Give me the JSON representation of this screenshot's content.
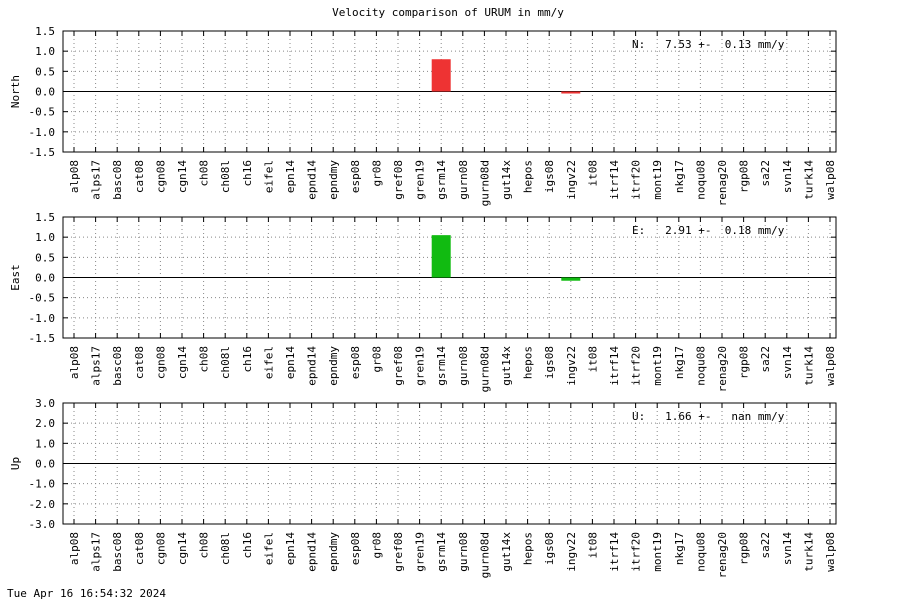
{
  "title": "Velocity comparison of URUM in mm/y",
  "timestamp": "Tue Apr 16 16:54:32 2024",
  "colors": {
    "north": "#ee3333",
    "east": "#11bb11",
    "grid": "#888888"
  },
  "chart_data": [
    {
      "type": "bar",
      "ylabel": "North",
      "annotation": "N:   7.53 +-  0.13 mm/y",
      "ylim": [
        -1.5,
        1.5
      ],
      "yticks": [
        "1.5",
        "1.0",
        "0.5",
        "0.0",
        "-0.5",
        "-1.0",
        "-1.5"
      ],
      "grid": true,
      "color": "#ee3333",
      "categories": [
        "alp08",
        "alps17",
        "basc08",
        "cat08",
        "cgn08",
        "cgn14",
        "ch08",
        "ch08l",
        "ch16",
        "eifel",
        "epn14",
        "epnd14",
        "epndmy",
        "esp08",
        "gr08",
        "gref08",
        "gren19",
        "gsrm14",
        "gurn08",
        "gurn08d",
        "gut14x",
        "hepos",
        "igs08",
        "ingv22",
        "it08",
        "itrf14",
        "itrf20",
        "mont19",
        "nkg17",
        "noqu08",
        "renag20",
        "rgp08",
        "sa22",
        "svn14",
        "turk14",
        "walp08"
      ],
      "values": [
        null,
        null,
        null,
        null,
        null,
        null,
        null,
        null,
        null,
        null,
        null,
        null,
        null,
        null,
        null,
        null,
        null,
        0.8,
        null,
        null,
        null,
        null,
        null,
        -0.05,
        null,
        null,
        null,
        null,
        null,
        null,
        null,
        null,
        null,
        null,
        null,
        null
      ]
    },
    {
      "type": "bar",
      "ylabel": "East",
      "annotation": "E:   2.91 +-  0.18 mm/y",
      "ylim": [
        -1.5,
        1.5
      ],
      "yticks": [
        "1.5",
        "1.0",
        "0.5",
        "0.0",
        "-0.5",
        "-1.0",
        "-1.5"
      ],
      "grid": true,
      "color": "#11bb11",
      "categories": [
        "alp08",
        "alps17",
        "basc08",
        "cat08",
        "cgn08",
        "cgn14",
        "ch08",
        "ch08l",
        "ch16",
        "eifel",
        "epn14",
        "epnd14",
        "epndmy",
        "esp08",
        "gr08",
        "gref08",
        "gren19",
        "gsrm14",
        "gurn08",
        "gurn08d",
        "gut14x",
        "hepos",
        "igs08",
        "ingv22",
        "it08",
        "itrf14",
        "itrf20",
        "mont19",
        "nkg17",
        "noqu08",
        "renag20",
        "rgp08",
        "sa22",
        "svn14",
        "turk14",
        "walp08"
      ],
      "values": [
        null,
        null,
        null,
        null,
        null,
        null,
        null,
        null,
        null,
        null,
        null,
        null,
        null,
        null,
        null,
        null,
        null,
        1.05,
        null,
        null,
        null,
        null,
        null,
        -0.08,
        null,
        null,
        null,
        null,
        null,
        null,
        null,
        null,
        null,
        null,
        null,
        null
      ]
    },
    {
      "type": "bar",
      "ylabel": "Up",
      "annotation": "U:   1.66 +-   nan mm/y",
      "ylim": [
        -3.0,
        3.0
      ],
      "yticks": [
        "3.0",
        "2.0",
        "1.0",
        "0.0",
        "-1.0",
        "-2.0",
        "-3.0"
      ],
      "grid": true,
      "color": "#3333ee",
      "categories": [
        "alp08",
        "alps17",
        "basc08",
        "cat08",
        "cgn08",
        "cgn14",
        "ch08",
        "ch08l",
        "ch16",
        "eifel",
        "epn14",
        "epnd14",
        "epndmy",
        "esp08",
        "gr08",
        "gref08",
        "gren19",
        "gsrm14",
        "gurn08",
        "gurn08d",
        "gut14x",
        "hepos",
        "igs08",
        "ingv22",
        "it08",
        "itrf14",
        "itrf20",
        "mont19",
        "nkg17",
        "noqu08",
        "renag20",
        "rgp08",
        "sa22",
        "svn14",
        "turk14",
        "walp08"
      ],
      "values": [
        null,
        null,
        null,
        null,
        null,
        null,
        null,
        null,
        null,
        null,
        null,
        null,
        null,
        null,
        null,
        null,
        null,
        null,
        null,
        null,
        null,
        null,
        null,
        null,
        null,
        null,
        null,
        null,
        null,
        null,
        null,
        null,
        null,
        null,
        null,
        null
      ]
    }
  ]
}
